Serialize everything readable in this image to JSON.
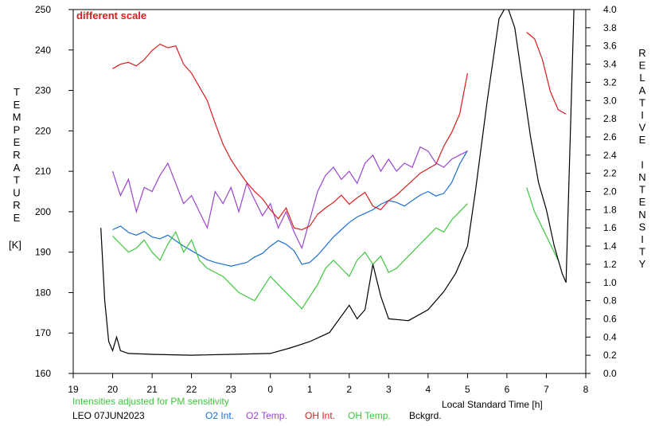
{
  "chart_data": {
    "type": "line",
    "annotation": "different scale",
    "note": "Intensities adjusted for PM sensitivity",
    "station_date": "LEO 07JUN2023",
    "xlabel": "Local Standard Time [h]",
    "ylabel_left": "TEMPERATURE",
    "ylabel_left_unit": "[K]",
    "ylabel_right": "RELATIVE INTENSITY",
    "x_ticks": [
      "19",
      "20",
      "21",
      "22",
      "23",
      "0",
      "1",
      "2",
      "3",
      "4",
      "5",
      "6",
      "7",
      "8"
    ],
    "xlim": [
      19,
      32
    ],
    "y_left_ticks": [
      "160",
      "170",
      "180",
      "190",
      "200",
      "210",
      "220",
      "230",
      "240",
      "250"
    ],
    "ylim_left": [
      160,
      250
    ],
    "y_right_ticks": [
      "0.0",
      "0.2",
      "0.4",
      "0.6",
      "0.8",
      "1.0",
      "1.2",
      "1.4",
      "1.6",
      "1.8",
      "2.0",
      "2.2",
      "2.4",
      "2.6",
      "2.8",
      "3.0",
      "3.2",
      "3.4",
      "3.6",
      "3.8",
      "4.0"
    ],
    "ylim_right": [
      0,
      4
    ],
    "legend": [
      {
        "label": "O2 Int.",
        "color": "#1a6fd6"
      },
      {
        "label": "O2 Temp.",
        "color": "#9b45d0"
      },
      {
        "label": "OH Int.",
        "color": "#d81e1e"
      },
      {
        "label": "OH Temp.",
        "color": "#3cc83c"
      },
      {
        "label": "Bckgrd.",
        "color": "#000000"
      }
    ],
    "colors": {
      "annotation": "#d81e1e",
      "note": "#3cc83c",
      "axis": "#000000",
      "background": "#ffffff"
    },
    "series": [
      {
        "name": "O2 Int.",
        "axis": "right",
        "color": "#1a6fd6",
        "x": [
          20.0,
          20.2,
          20.4,
          20.6,
          20.8,
          21.0,
          21.2,
          21.4,
          21.6,
          21.8,
          22.0,
          22.2,
          22.4,
          22.6,
          22.8,
          23.0,
          23.2,
          23.4,
          23.6,
          23.8,
          24.0,
          24.2,
          24.4,
          24.6,
          24.8,
          25.0,
          25.2,
          25.4,
          25.6,
          25.8,
          26.0,
          26.2,
          26.4,
          26.6,
          26.8,
          27.0,
          27.2,
          27.4,
          27.6,
          27.8,
          28.0,
          28.2,
          28.4,
          28.6,
          28.8,
          29.0
        ],
        "y": [
          1.58,
          1.62,
          1.55,
          1.52,
          1.56,
          1.5,
          1.48,
          1.52,
          1.46,
          1.4,
          1.35,
          1.3,
          1.25,
          1.22,
          1.2,
          1.18,
          1.2,
          1.22,
          1.28,
          1.32,
          1.4,
          1.46,
          1.42,
          1.35,
          1.2,
          1.22,
          1.3,
          1.4,
          1.5,
          1.58,
          1.66,
          1.72,
          1.76,
          1.8,
          1.86,
          1.9,
          1.88,
          1.84,
          1.9,
          1.96,
          2.0,
          1.95,
          1.98,
          2.1,
          2.3,
          2.45
        ]
      },
      {
        "name": "O2 Temp.",
        "axis": "left",
        "color": "#9b45d0",
        "x": [
          20.0,
          20.2,
          20.4,
          20.6,
          20.8,
          21.0,
          21.2,
          21.4,
          21.6,
          21.8,
          22.0,
          22.2,
          22.4,
          22.6,
          22.8,
          23.0,
          23.2,
          23.4,
          23.6,
          23.8,
          24.0,
          24.2,
          24.4,
          24.6,
          24.8,
          25.0,
          25.2,
          25.4,
          25.6,
          25.8,
          26.0,
          26.2,
          26.4,
          26.6,
          26.8,
          27.0,
          27.2,
          27.4,
          27.6,
          27.8,
          28.0,
          28.2,
          28.4,
          28.6,
          28.8,
          29.0
        ],
        "y": [
          210,
          204,
          208,
          200,
          206,
          205,
          209,
          212,
          207,
          202,
          204,
          200,
          196,
          205,
          202,
          206,
          200,
          207,
          203,
          199,
          202,
          196,
          200,
          195,
          191,
          198,
          205,
          209,
          211,
          208,
          210,
          207,
          212,
          214,
          210,
          213,
          210,
          212,
          211,
          216,
          215,
          212,
          211,
          213,
          214,
          215
        ]
      },
      {
        "name": "OH Int.",
        "axis": "right",
        "color": "#d81e1e",
        "x": [
          20.0,
          20.2,
          20.4,
          20.6,
          20.8,
          21.0,
          21.2,
          21.4,
          21.6,
          21.8,
          22.0,
          22.2,
          22.4,
          22.6,
          22.8,
          23.0,
          23.2,
          23.4,
          23.6,
          23.8,
          24.0,
          24.2,
          24.4,
          24.6,
          24.8,
          25.0,
          25.2,
          25.4,
          25.6,
          25.8,
          26.0,
          26.2,
          26.4,
          26.6,
          26.8,
          27.0,
          27.2,
          27.4,
          27.6,
          27.8,
          28.0,
          28.2,
          28.4,
          28.6,
          28.8,
          29.0,
          30.5,
          30.7,
          30.9,
          31.1,
          31.3,
          31.5
        ],
        "y": [
          3.35,
          3.4,
          3.42,
          3.38,
          3.45,
          3.55,
          3.62,
          3.58,
          3.6,
          3.4,
          3.3,
          3.15,
          3.0,
          2.75,
          2.52,
          2.35,
          2.22,
          2.1,
          2.0,
          1.92,
          1.8,
          1.7,
          1.82,
          1.6,
          1.58,
          1.62,
          1.75,
          1.82,
          1.88,
          1.96,
          1.86,
          1.93,
          1.99,
          1.84,
          1.8,
          1.9,
          1.96,
          2.04,
          2.12,
          2.2,
          2.25,
          2.3,
          2.5,
          2.65,
          2.85,
          3.3,
          3.75,
          3.68,
          3.45,
          3.1,
          2.9,
          2.85
        ]
      },
      {
        "name": "OH Temp.",
        "axis": "left",
        "color": "#3cc83c",
        "x": [
          20.0,
          20.2,
          20.4,
          20.6,
          20.8,
          21.0,
          21.2,
          21.4,
          21.6,
          21.8,
          22.0,
          22.2,
          22.4,
          22.6,
          22.8,
          23.0,
          23.2,
          23.4,
          23.6,
          23.8,
          24.0,
          24.2,
          24.4,
          24.6,
          24.8,
          25.0,
          25.2,
          25.4,
          25.6,
          25.8,
          26.0,
          26.2,
          26.4,
          26.6,
          26.8,
          27.0,
          27.2,
          27.4,
          27.6,
          27.8,
          28.0,
          28.2,
          28.4,
          28.6,
          28.8,
          29.0,
          30.5,
          30.7,
          30.9,
          31.1,
          31.3
        ],
        "y": [
          194,
          192,
          190,
          191,
          193,
          190,
          188,
          192,
          195,
          190,
          193,
          188,
          186,
          185,
          184,
          182,
          180,
          179,
          178,
          181,
          184,
          182,
          180,
          178,
          176,
          179,
          182,
          186,
          188,
          186,
          184,
          188,
          190,
          187,
          189,
          185,
          186,
          188,
          190,
          192,
          194,
          196,
          195,
          198,
          200,
          202,
          206,
          200,
          196,
          192,
          188
        ]
      },
      {
        "name": "Bckgrd.",
        "axis": "right",
        "color": "#000000",
        "x": [
          19.7,
          19.8,
          19.9,
          20.0,
          20.1,
          20.2,
          20.4,
          21.0,
          22.0,
          23.0,
          24.0,
          24.5,
          25.0,
          25.5,
          26.0,
          26.2,
          26.4,
          26.6,
          26.8,
          27.0,
          27.5,
          28.0,
          28.4,
          28.7,
          29.0,
          29.2,
          29.5,
          29.8,
          30.0,
          30.2,
          30.4,
          30.6,
          30.8,
          31.0,
          31.2,
          31.4,
          31.5,
          31.7
        ],
        "y": [
          1.6,
          0.8,
          0.35,
          0.25,
          0.4,
          0.25,
          0.22,
          0.21,
          0.2,
          0.21,
          0.22,
          0.28,
          0.35,
          0.45,
          0.75,
          0.6,
          0.7,
          1.2,
          0.85,
          0.6,
          0.58,
          0.7,
          0.9,
          1.1,
          1.4,
          2.0,
          3.0,
          3.9,
          4.05,
          3.8,
          3.2,
          2.6,
          2.1,
          1.8,
          1.4,
          1.1,
          1.0,
          4.0
        ]
      }
    ]
  }
}
